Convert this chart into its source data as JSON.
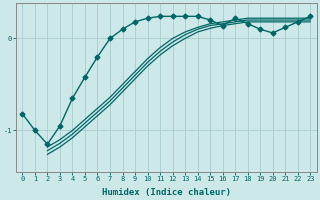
{
  "xlabel": "Humidex (Indice chaleur)",
  "bg_color": "#cce8e8",
  "line_color": "#006666",
  "grid_color": "#aacccc",
  "xlim": [
    -0.5,
    23.5
  ],
  "ylim": [
    -1.45,
    0.38
  ],
  "yticks": [
    -1,
    0
  ],
  "xticks": [
    0,
    1,
    2,
    3,
    4,
    5,
    6,
    7,
    8,
    9,
    10,
    11,
    12,
    13,
    14,
    15,
    16,
    17,
    18,
    19,
    20,
    21,
    22,
    23
  ],
  "line1_x": [
    0,
    1,
    2,
    3,
    4,
    5,
    6,
    7,
    8,
    9,
    10,
    11,
    12,
    13,
    14,
    15,
    16,
    17,
    18,
    19,
    20,
    21,
    22,
    23
  ],
  "line1_y": [
    -0.82,
    -1.0,
    -1.15,
    -0.95,
    -0.65,
    -0.42,
    -0.2,
    0.0,
    0.1,
    0.18,
    0.22,
    0.24,
    0.24,
    0.24,
    0.24,
    0.2,
    0.14,
    0.22,
    0.16,
    0.1,
    0.06,
    0.12,
    0.18,
    0.24
  ],
  "line2_x": [
    2,
    3,
    4,
    5,
    6,
    7,
    8,
    9,
    10,
    11,
    12,
    13,
    14,
    15,
    16,
    17,
    18,
    19,
    20,
    21,
    22,
    23
  ],
  "line2_y": [
    -1.18,
    -1.1,
    -1.0,
    -0.88,
    -0.76,
    -0.64,
    -0.5,
    -0.36,
    -0.22,
    -0.1,
    0.0,
    0.07,
    0.12,
    0.16,
    0.18,
    0.2,
    0.22,
    0.22,
    0.22,
    0.22,
    0.22,
    0.22
  ],
  "line3_x": [
    2,
    3,
    4,
    5,
    6,
    7,
    8,
    9,
    10,
    11,
    12,
    13,
    14,
    15,
    16,
    17,
    18,
    19,
    20,
    21,
    22,
    23
  ],
  "line3_y": [
    -1.22,
    -1.14,
    -1.04,
    -0.92,
    -0.8,
    -0.68,
    -0.54,
    -0.4,
    -0.26,
    -0.14,
    -0.04,
    0.04,
    0.1,
    0.14,
    0.16,
    0.18,
    0.2,
    0.2,
    0.2,
    0.2,
    0.2,
    0.2
  ],
  "line4_x": [
    2,
    3,
    4,
    5,
    6,
    7,
    8,
    9,
    10,
    11,
    12,
    13,
    14,
    15,
    16,
    17,
    18,
    19,
    20,
    21,
    22,
    23
  ],
  "line4_y": [
    -1.26,
    -1.18,
    -1.08,
    -0.96,
    -0.84,
    -0.72,
    -0.58,
    -0.44,
    -0.3,
    -0.18,
    -0.08,
    0.0,
    0.07,
    0.11,
    0.14,
    0.16,
    0.18,
    0.18,
    0.18,
    0.18,
    0.18,
    0.18
  ]
}
